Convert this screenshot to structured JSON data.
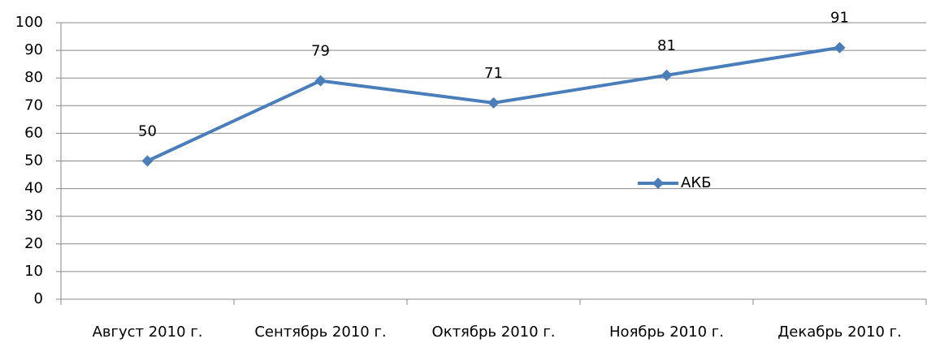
{
  "chart_data": {
    "type": "line",
    "categories": [
      "Август 2010 г.",
      "Сентябрь 2010 г.",
      "Октябрь 2010 г.",
      "Ноябрь 2010 г.",
      "Декабрь 2010 г."
    ],
    "series": [
      {
        "name": "АКБ",
        "color": "#4a7ebb",
        "values": [
          50,
          79,
          71,
          81,
          91
        ]
      }
    ],
    "ylim": [
      0,
      100
    ],
    "yticks": [
      0,
      10,
      20,
      30,
      40,
      50,
      60,
      70,
      80,
      90,
      100
    ],
    "grid": true,
    "legend": "right",
    "data_labels": true
  }
}
